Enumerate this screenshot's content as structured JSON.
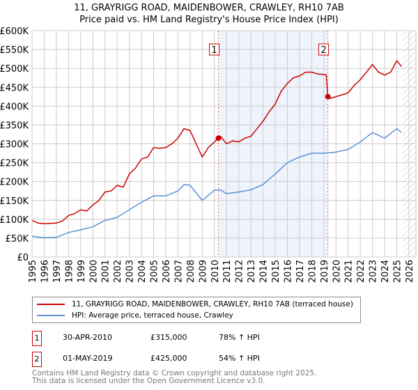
{
  "chart_data": {
    "type": "line",
    "title": "11, GRAYRIGG ROAD, MAIDENBOWER, CRAWLEY, RH10 7AB",
    "subtitle": "Price paid vs. HM Land Registry's House Price Index (HPI)",
    "xlim": [
      1995,
      2026
    ],
    "ylim": [
      0,
      600000
    ],
    "yticks": [
      0,
      50000,
      100000,
      150000,
      200000,
      250000,
      300000,
      350000,
      400000,
      450000,
      500000,
      550000,
      600000
    ],
    "ytick_labels": [
      "£0",
      "£50K",
      "£100K",
      "£150K",
      "£200K",
      "£250K",
      "£300K",
      "£350K",
      "£400K",
      "£450K",
      "£500K",
      "£550K",
      "£600K"
    ],
    "xticks": [
      "1995",
      "1996",
      "1997",
      "1998",
      "1999",
      "2000",
      "2001",
      "2002",
      "2003",
      "2004",
      "2005",
      "2006",
      "2007",
      "2008",
      "2009",
      "2010",
      "2011",
      "2012",
      "2013",
      "2014",
      "2015",
      "2016",
      "2017",
      "2018",
      "2019",
      "2020",
      "2021",
      "2022",
      "2023",
      "2024",
      "2025",
      "2026"
    ],
    "grid": true,
    "shaded_range": [
      2010.33,
      2019.33
    ],
    "series": [
      {
        "name": "11, GRAYRIGG ROAD, MAIDENBOWER, CRAWLEY, RH10 7AB (terraced house)",
        "color": "#cc0000",
        "x": [
          1995,
          1995.5,
          1996,
          1997,
          1997.5,
          1998,
          1998.5,
          1999,
          1999.5,
          2000,
          2000.5,
          2001,
          2001.5,
          2002,
          2002.5,
          2003,
          2003.5,
          2004,
          2004.5,
          2005,
          2005.5,
          2006,
          2006.5,
          2007,
          2007.5,
          2008,
          2008.5,
          2009,
          2009.5,
          2010.33,
          2010.5,
          2011,
          2011.5,
          2012,
          2012.5,
          2013,
          2013.5,
          2014,
          2014.5,
          2015,
          2015.5,
          2016,
          2016.5,
          2017,
          2017.5,
          2018,
          2018.5,
          2019.2,
          2019.33,
          2019.5,
          2020,
          2020.5,
          2021,
          2021.5,
          2022,
          2022.5,
          2023,
          2023.5,
          2024,
          2024.5,
          2025,
          2025.4
        ],
        "y": [
          97000,
          90000,
          88000,
          90000,
          95000,
          110000,
          115000,
          125000,
          122000,
          138000,
          150000,
          172000,
          175000,
          190000,
          185000,
          220000,
          235000,
          260000,
          265000,
          290000,
          288000,
          290000,
          300000,
          315000,
          340000,
          335000,
          300000,
          265000,
          290000,
          315000,
          320000,
          300000,
          308000,
          305000,
          315000,
          320000,
          340000,
          360000,
          385000,
          405000,
          440000,
          460000,
          475000,
          480000,
          490000,
          490000,
          485000,
          483000,
          425000,
          420000,
          425000,
          430000,
          435000,
          455000,
          470000,
          490000,
          510000,
          490000,
          482000,
          490000,
          520000,
          505000
        ]
      },
      {
        "name": "HPI: Average price, terraced house, Crawley",
        "color": "#5b8fd4",
        "x": [
          1995,
          1996,
          1997,
          1998,
          1999,
          2000,
          2001,
          2002,
          2003,
          2004,
          2005,
          2006,
          2007,
          2007.5,
          2008,
          2009,
          2010,
          2010.5,
          2011,
          2012,
          2013,
          2014,
          2015,
          2016,
          2017,
          2018,
          2019,
          2020,
          2021,
          2022,
          2023,
          2024,
          2025,
          2025.4
        ],
        "y": [
          55000,
          51000,
          52000,
          65000,
          72000,
          80000,
          97000,
          105000,
          125000,
          145000,
          162000,
          162000,
          175000,
          192000,
          190000,
          150000,
          177000,
          178000,
          168000,
          172000,
          178000,
          192000,
          220000,
          250000,
          265000,
          275000,
          275000,
          278000,
          285000,
          305000,
          330000,
          315000,
          340000,
          330000
        ]
      }
    ],
    "annotations": [
      {
        "label": "1",
        "x": 2010.33,
        "y": 315000
      },
      {
        "label": "2",
        "x": 2019.33,
        "y": 425000
      }
    ]
  },
  "legend": {
    "items": [
      "11, GRAYRIGG ROAD, MAIDENBOWER, CRAWLEY, RH10 7AB (terraced house)",
      "HPI: Average price, terraced house, Crawley"
    ]
  },
  "transactions": [
    {
      "num": "1",
      "date": "30-APR-2010",
      "price": "£315,000",
      "hpi": "78% ↑ HPI"
    },
    {
      "num": "2",
      "date": "01-MAY-2019",
      "price": "£425,000",
      "hpi": "54% ↑ HPI"
    }
  ],
  "footer": {
    "line1": "Contains HM Land Registry data © Crown copyright and database right 2025.",
    "line2": "This data is licensed under the Open Government Licence v3.0."
  }
}
